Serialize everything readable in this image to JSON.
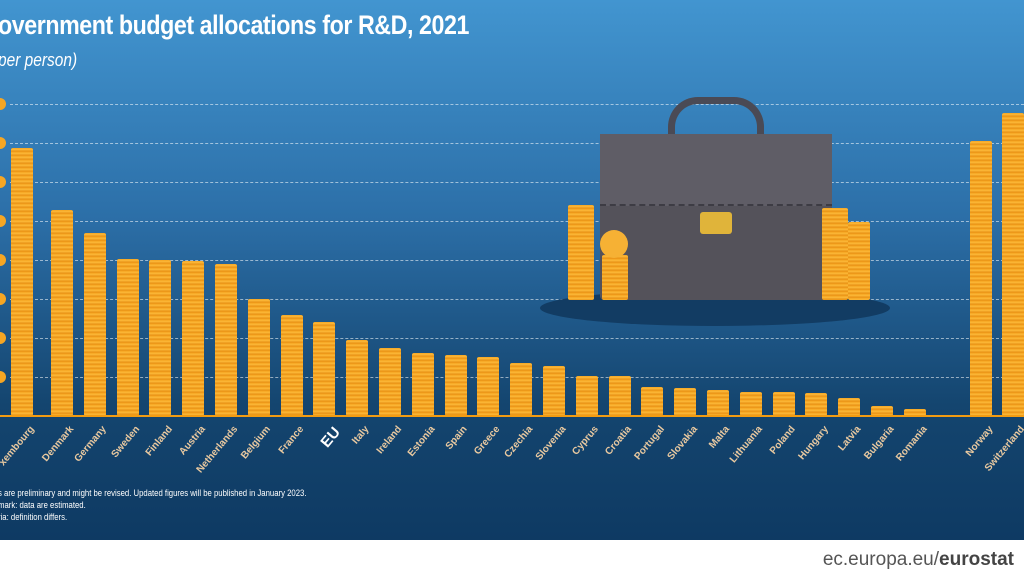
{
  "chart_data": {
    "type": "bar",
    "title": "overnment budget allocations for R&D, 2021",
    "subtitle": "per person)",
    "categories": [
      "Luxembourg",
      "Denmark",
      "Germany",
      "Sweden",
      "Finland",
      "Austria",
      "Netherlands",
      "Belgium",
      "France",
      "EU",
      "Italy",
      "Ireland",
      "Estonia",
      "Spain",
      "Greece",
      "Czechia",
      "Slovenia",
      "Cyprus",
      "Croatia",
      "Portugal",
      "Slovakia",
      "Malta",
      "Lithuania",
      "Poland",
      "Hungary",
      "Latvia",
      "Bulgaria",
      "Romania",
      "Norway",
      "Switzerland"
    ],
    "category_display": [
      "xembourg",
      "Denmark",
      "Germany",
      "Sweden",
      "Finland",
      "Austria",
      "Netherlands",
      "Belgium",
      "France",
      "EU",
      "Italy",
      "Ireland",
      "Estonia",
      "Spain",
      "Greece",
      "Czechia",
      "Slovenia",
      "Cyprus",
      "Croatia",
      "Portugal",
      "Slovakia",
      "Malta",
      "Lithuania",
      "Poland",
      "Hungary",
      "Latvia",
      "Bulgaria",
      "Romania",
      "Norway",
      "Switzerland"
    ],
    "values": [
      687,
      528,
      469,
      403,
      400,
      397,
      390,
      300,
      259,
      241,
      195,
      174,
      162,
      156,
      151,
      136,
      128,
      103,
      103,
      74,
      72,
      67,
      62,
      62,
      59,
      46,
      26,
      18,
      705,
      777
    ],
    "ylim": [
      0,
      800
    ],
    "grid": true,
    "gridlines": [
      0,
      100,
      200,
      300,
      400,
      500,
      600,
      700,
      800
    ],
    "highlight": "EU",
    "colors": {
      "bar": "#f6a623",
      "background_top": "#4295d0",
      "background_bottom": "#0e3a63",
      "label": "#e9c9a0"
    }
  },
  "footnotes": [
    "s are preliminary and might be revised. Updated figures will be published in January 2023.",
    "mark: data are estimated.",
    "ria: definition differs."
  ],
  "source": {
    "prefix": "ec.europa.eu/",
    "brand": "eurostat"
  }
}
